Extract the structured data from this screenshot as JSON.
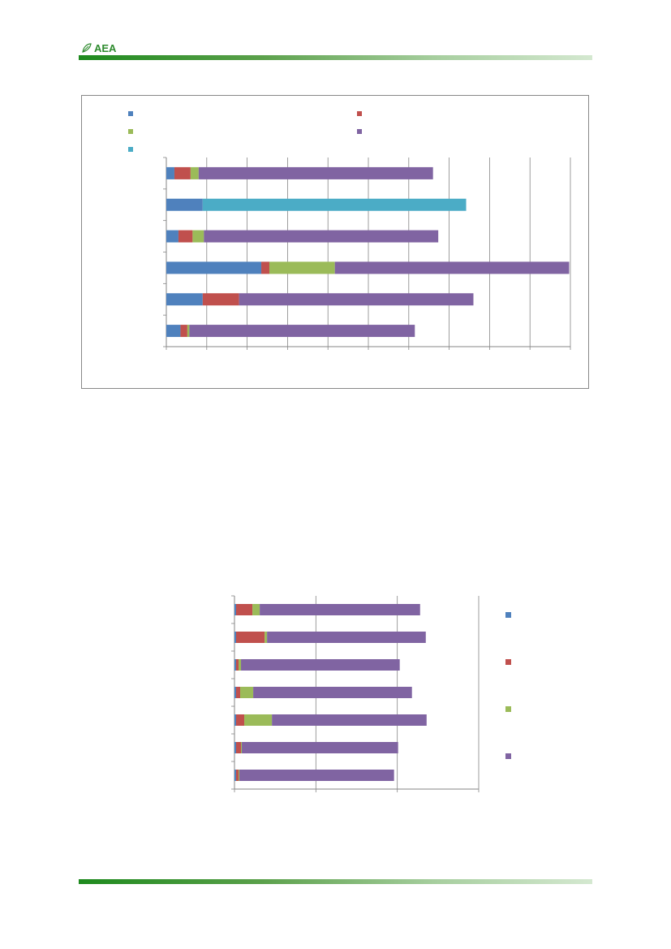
{
  "header": {
    "logo_text": "AEA"
  },
  "colors": {
    "series": [
      "#4f81bd",
      "#c0504d",
      "#9bbb59",
      "#8064a2",
      "#4bacc6"
    ],
    "brand_green": "#2e8b2e",
    "grid": "#868686"
  },
  "chart_data": [
    {
      "type": "bar",
      "orientation": "horizontal",
      "stacked": true,
      "grid": true,
      "legend_position": "top",
      "xlim": [
        0,
        10
      ],
      "series": [
        {
          "values": [
            0.2,
            0.9,
            0.3,
            2.35,
            0.9,
            0.35
          ]
        },
        {
          "values": [
            0.4,
            0,
            0.35,
            0.2,
            0.9,
            0.17
          ]
        },
        {
          "values": [
            0.2,
            0,
            0.28,
            1.62,
            0,
            0.05
          ]
        },
        {
          "values": [
            5.8,
            0,
            5.8,
            5.8,
            5.8,
            5.58
          ]
        },
        {
          "values": [
            0,
            6.52,
            0,
            0,
            0,
            0
          ]
        }
      ]
    },
    {
      "type": "bar",
      "orientation": "horizontal",
      "stacked": true,
      "grid": true,
      "legend_position": "right",
      "xlim": [
        0,
        3
      ],
      "series": [
        {
          "values": [
            0.02,
            0.02,
            0.02,
            0.02,
            0.02,
            0.02,
            0.02
          ]
        },
        {
          "values": [
            0.2,
            0.35,
            0.03,
            0.05,
            0.1,
            0.06,
            0.03
          ]
        },
        {
          "values": [
            0.09,
            0.03,
            0.03,
            0.16,
            0.34,
            0.01,
            0.01
          ]
        },
        {
          "values": [
            1.97,
            1.95,
            1.95,
            1.95,
            1.9,
            1.92,
            1.9
          ]
        }
      ]
    }
  ]
}
